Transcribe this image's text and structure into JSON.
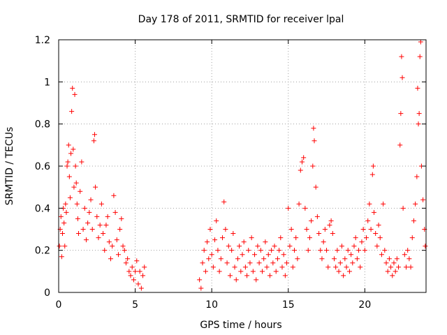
{
  "chart_data": {
    "type": "scatter",
    "title": "Day 178 of 2011, SRMTID for receiver lpal",
    "xlabel": "GPS time / hours",
    "ylabel": "SRMTID / TECUs",
    "xlim": [
      0,
      24
    ],
    "ylim": [
      0,
      1.2
    ],
    "xticks": [
      0,
      5,
      10,
      15,
      20
    ],
    "xtick_labels": [
      "0",
      "5",
      "10",
      "15",
      "20"
    ],
    "yticks": [
      0,
      0.2,
      0.4,
      0.6,
      0.8,
      1,
      1.2
    ],
    "ytick_labels": [
      "0",
      "0.2",
      "0.4",
      "0.6",
      "0.8",
      "1",
      "1.2"
    ],
    "grid": true,
    "marker": "+",
    "color": "#ff0000",
    "series": [
      {
        "name": "SRMTID",
        "points": [
          [
            0.05,
            0.22
          ],
          [
            0.1,
            0.3
          ],
          [
            0.15,
            0.36
          ],
          [
            0.2,
            0.17
          ],
          [
            0.25,
            0.28
          ],
          [
            0.3,
            0.4
          ],
          [
            0.35,
            0.33
          ],
          [
            0.4,
            0.22
          ],
          [
            0.45,
            0.42
          ],
          [
            0.5,
            0.38
          ],
          [
            0.55,
            0.6
          ],
          [
            0.6,
            0.62
          ],
          [
            0.65,
            0.7
          ],
          [
            0.7,
            0.55
          ],
          [
            0.75,
            0.45
          ],
          [
            0.8,
            0.66
          ],
          [
            0.85,
            0.86
          ],
          [
            0.9,
            0.97
          ],
          [
            0.95,
            0.68
          ],
          [
            1.0,
            0.5
          ],
          [
            1.05,
            0.94
          ],
          [
            1.1,
            0.6
          ],
          [
            1.15,
            0.52
          ],
          [
            1.2,
            0.42
          ],
          [
            1.25,
            0.35
          ],
          [
            1.3,
            0.28
          ],
          [
            1.4,
            0.48
          ],
          [
            1.5,
            0.62
          ],
          [
            1.6,
            0.3
          ],
          [
            1.7,
            0.4
          ],
          [
            1.8,
            0.25
          ],
          [
            1.9,
            0.33
          ],
          [
            2.0,
            0.38
          ],
          [
            2.1,
            0.44
          ],
          [
            2.2,
            0.3
          ],
          [
            2.3,
            0.72
          ],
          [
            2.35,
            0.75
          ],
          [
            2.4,
            0.5
          ],
          [
            2.5,
            0.36
          ],
          [
            2.6,
            0.26
          ],
          [
            2.7,
            0.32
          ],
          [
            2.8,
            0.42
          ],
          [
            2.9,
            0.28
          ],
          [
            3.0,
            0.2
          ],
          [
            3.1,
            0.32
          ],
          [
            3.2,
            0.36
          ],
          [
            3.3,
            0.24
          ],
          [
            3.4,
            0.16
          ],
          [
            3.5,
            0.22
          ],
          [
            3.6,
            0.46
          ],
          [
            3.7,
            0.38
          ],
          [
            3.8,
            0.25
          ],
          [
            3.9,
            0.18
          ],
          [
            4.0,
            0.3
          ],
          [
            4.1,
            0.35
          ],
          [
            4.2,
            0.22
          ],
          [
            4.3,
            0.2
          ],
          [
            4.4,
            0.14
          ],
          [
            4.5,
            0.16
          ],
          [
            4.6,
            0.1
          ],
          [
            4.7,
            0.08
          ],
          [
            4.8,
            0.12
          ],
          [
            4.9,
            0.06
          ],
          [
            5.0,
            0.1
          ],
          [
            5.1,
            0.15
          ],
          [
            5.2,
            0.04
          ],
          [
            5.3,
            0.1
          ],
          [
            5.4,
            0.02
          ],
          [
            5.5,
            0.08
          ],
          [
            5.6,
            0.12
          ],
          [
            9.2,
            0.06
          ],
          [
            9.3,
            0.02
          ],
          [
            9.4,
            0.14
          ],
          [
            9.5,
            0.2
          ],
          [
            9.6,
            0.1
          ],
          [
            9.7,
            0.24
          ],
          [
            9.8,
            0.16
          ],
          [
            9.9,
            0.3
          ],
          [
            10.0,
            0.18
          ],
          [
            10.1,
            0.12
          ],
          [
            10.2,
            0.25
          ],
          [
            10.3,
            0.34
          ],
          [
            10.4,
            0.2
          ],
          [
            10.5,
            0.1
          ],
          [
            10.6,
            0.16
          ],
          [
            10.7,
            0.26
          ],
          [
            10.8,
            0.43
          ],
          [
            10.9,
            0.3
          ],
          [
            11.0,
            0.14
          ],
          [
            11.1,
            0.22
          ],
          [
            11.2,
            0.08
          ],
          [
            11.3,
            0.2
          ],
          [
            11.4,
            0.28
          ],
          [
            11.5,
            0.12
          ],
          [
            11.6,
            0.06
          ],
          [
            11.7,
            0.16
          ],
          [
            11.8,
            0.22
          ],
          [
            11.9,
            0.1
          ],
          [
            12.0,
            0.18
          ],
          [
            12.1,
            0.24
          ],
          [
            12.2,
            0.12
          ],
          [
            12.3,
            0.08
          ],
          [
            12.4,
            0.2
          ],
          [
            12.5,
            0.14
          ],
          [
            12.6,
            0.26
          ],
          [
            12.7,
            0.1
          ],
          [
            12.8,
            0.18
          ],
          [
            12.9,
            0.06
          ],
          [
            13.0,
            0.22
          ],
          [
            13.1,
            0.14
          ],
          [
            13.2,
            0.2
          ],
          [
            13.3,
            0.1
          ],
          [
            13.4,
            0.16
          ],
          [
            13.5,
            0.24
          ],
          [
            13.6,
            0.12
          ],
          [
            13.7,
            0.18
          ],
          [
            13.8,
            0.08
          ],
          [
            13.9,
            0.2
          ],
          [
            14.0,
            0.14
          ],
          [
            14.1,
            0.22
          ],
          [
            14.2,
            0.1
          ],
          [
            14.3,
            0.16
          ],
          [
            14.4,
            0.2
          ],
          [
            14.5,
            0.26
          ],
          [
            14.6,
            0.12
          ],
          [
            14.7,
            0.18
          ],
          [
            14.8,
            0.08
          ],
          [
            14.9,
            0.14
          ],
          [
            15.0,
            0.4
          ],
          [
            15.1,
            0.22
          ],
          [
            15.2,
            0.3
          ],
          [
            15.3,
            0.12
          ],
          [
            15.4,
            0.2
          ],
          [
            15.5,
            0.26
          ],
          [
            15.6,
            0.16
          ],
          [
            15.7,
            0.42
          ],
          [
            15.8,
            0.58
          ],
          [
            15.9,
            0.62
          ],
          [
            16.0,
            0.64
          ],
          [
            16.1,
            0.4
          ],
          [
            16.2,
            0.3
          ],
          [
            16.3,
            0.2
          ],
          [
            16.4,
            0.26
          ],
          [
            16.5,
            0.34
          ],
          [
            16.6,
            0.6
          ],
          [
            16.65,
            0.78
          ],
          [
            16.7,
            0.72
          ],
          [
            16.8,
            0.5
          ],
          [
            16.9,
            0.36
          ],
          [
            17.0,
            0.28
          ],
          [
            17.1,
            0.2
          ],
          [
            17.2,
            0.16
          ],
          [
            17.3,
            0.24
          ],
          [
            17.4,
            0.3
          ],
          [
            17.5,
            0.2
          ],
          [
            17.6,
            0.12
          ],
          [
            17.7,
            0.32
          ],
          [
            17.8,
            0.34
          ],
          [
            17.9,
            0.28
          ],
          [
            18.0,
            0.16
          ],
          [
            18.1,
            0.12
          ],
          [
            18.2,
            0.2
          ],
          [
            18.3,
            0.1
          ],
          [
            18.4,
            0.14
          ],
          [
            18.5,
            0.22
          ],
          [
            18.6,
            0.08
          ],
          [
            18.7,
            0.16
          ],
          [
            18.8,
            0.12
          ],
          [
            18.9,
            0.2
          ],
          [
            19.0,
            0.1
          ],
          [
            19.1,
            0.18
          ],
          [
            19.2,
            0.14
          ],
          [
            19.3,
            0.22
          ],
          [
            19.4,
            0.26
          ],
          [
            19.5,
            0.16
          ],
          [
            19.6,
            0.2
          ],
          [
            19.7,
            0.12
          ],
          [
            19.8,
            0.24
          ],
          [
            19.9,
            0.3
          ],
          [
            20.0,
            0.2
          ],
          [
            20.1,
            0.26
          ],
          [
            20.2,
            0.34
          ],
          [
            20.3,
            0.42
          ],
          [
            20.4,
            0.3
          ],
          [
            20.5,
            0.56
          ],
          [
            20.55,
            0.6
          ],
          [
            20.6,
            0.38
          ],
          [
            20.7,
            0.28
          ],
          [
            20.8,
            0.22
          ],
          [
            20.9,
            0.32
          ],
          [
            21.0,
            0.26
          ],
          [
            21.1,
            0.18
          ],
          [
            21.2,
            0.42
          ],
          [
            21.3,
            0.2
          ],
          [
            21.4,
            0.14
          ],
          [
            21.5,
            0.1
          ],
          [
            21.6,
            0.16
          ],
          [
            21.7,
            0.12
          ],
          [
            21.8,
            0.08
          ],
          [
            21.9,
            0.14
          ],
          [
            22.0,
            0.1
          ],
          [
            22.1,
            0.16
          ],
          [
            22.2,
            0.12
          ],
          [
            22.3,
            0.7
          ],
          [
            22.35,
            0.85
          ],
          [
            22.4,
            1.12
          ],
          [
            22.45,
            1.02
          ],
          [
            22.5,
            0.4
          ],
          [
            22.6,
            0.18
          ],
          [
            22.7,
            0.12
          ],
          [
            22.8,
            0.2
          ],
          [
            22.9,
            0.16
          ],
          [
            23.0,
            0.12
          ],
          [
            23.1,
            0.26
          ],
          [
            23.2,
            0.34
          ],
          [
            23.3,
            0.42
          ],
          [
            23.4,
            0.55
          ],
          [
            23.45,
            0.97
          ],
          [
            23.5,
            0.8
          ],
          [
            23.55,
            0.85
          ],
          [
            23.6,
            1.12
          ],
          [
            23.65,
            1.19
          ],
          [
            23.7,
            0.6
          ],
          [
            23.8,
            0.44
          ],
          [
            23.9,
            0.3
          ],
          [
            23.95,
            0.22
          ]
        ]
      }
    ]
  }
}
